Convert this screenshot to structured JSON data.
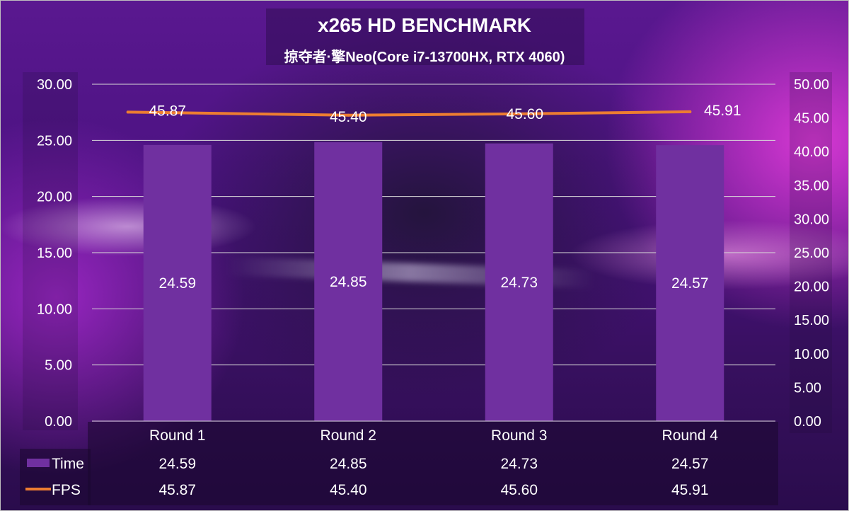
{
  "chart_data": {
    "type": "bar",
    "title": "x265 HD BENCHMARK",
    "subtitle": "掠夺者·擎Neo(Core i7-13700HX, RTX 4060)",
    "categories": [
      "Round 1",
      "Round 2",
      "Round 3",
      "Round 4"
    ],
    "series": [
      {
        "name": "Time",
        "type": "bar",
        "axis": "left",
        "color": "#7030a0",
        "values": [
          24.59,
          24.85,
          24.73,
          24.57
        ],
        "labels": [
          "24.59",
          "24.85",
          "24.73",
          "24.57"
        ]
      },
      {
        "name": "FPS",
        "type": "line",
        "axis": "right",
        "color": "#ed7d31",
        "values": [
          45.87,
          45.4,
          45.6,
          45.91
        ],
        "labels": [
          "45.87",
          "45.40",
          "45.60",
          "45.91"
        ]
      }
    ],
    "y_left": {
      "min": 0,
      "max": 30,
      "step": 5,
      "ticks": [
        "0.00",
        "5.00",
        "10.00",
        "15.00",
        "20.00",
        "25.00",
        "30.00"
      ]
    },
    "y_right": {
      "min": 0,
      "max": 50,
      "step": 5,
      "ticks": [
        "0.00",
        "5.00",
        "10.00",
        "15.00",
        "20.00",
        "25.00",
        "30.00",
        "35.00",
        "40.00",
        "45.00",
        "50.00"
      ]
    },
    "grid": true,
    "legend": "data-table",
    "data_table": true
  }
}
